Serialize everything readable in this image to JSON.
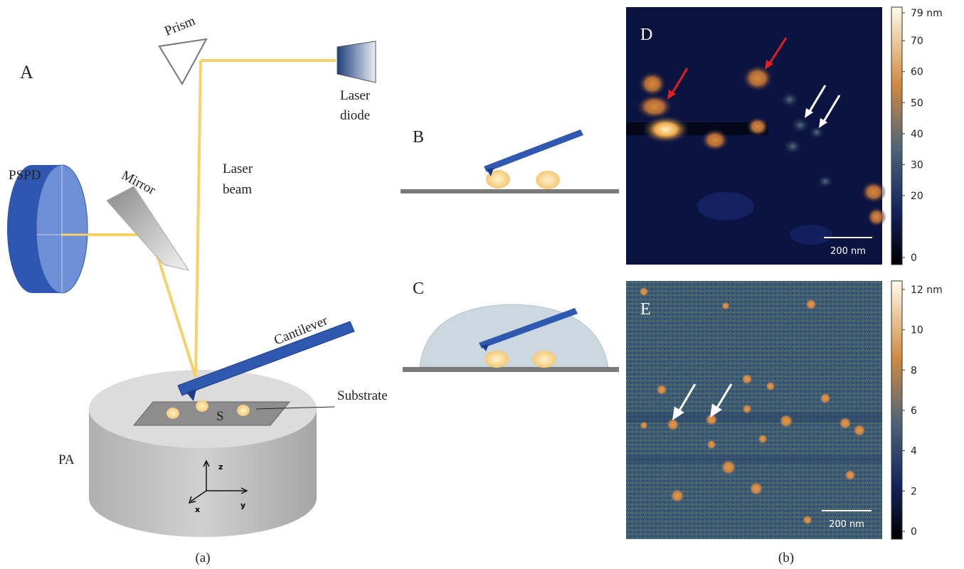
{
  "panel_a": {
    "label": "A",
    "prism": "Prism",
    "laser_diode": [
      "Laser",
      "diode"
    ],
    "laser_beam": [
      "Laser",
      "beam"
    ],
    "pspd": "PSPD",
    "mirror": "Mirror",
    "cantilever": "Cantilever",
    "substrate": "Substrate",
    "sample": "S",
    "pa": "PA",
    "axes": {
      "z": "z",
      "x": "x",
      "y": "y"
    },
    "caption": "(a)"
  },
  "panel_b": {
    "label": "B"
  },
  "panel_c": {
    "label": "C"
  },
  "panel_d": {
    "label": "D",
    "scale_bar": "200 nm",
    "colorbar": {
      "ticks": [
        {
          "value": 79,
          "label": "79 nm"
        },
        70,
        60,
        50,
        40,
        30,
        20,
        0
      ]
    }
  },
  "panel_e": {
    "label": "E",
    "scale_bar": "200 nm",
    "colorbar": {
      "ticks": [
        {
          "value": 12,
          "label": "12 nm"
        },
        10,
        8,
        6,
        4,
        2,
        0
      ]
    }
  },
  "caption_b": "(b)"
}
